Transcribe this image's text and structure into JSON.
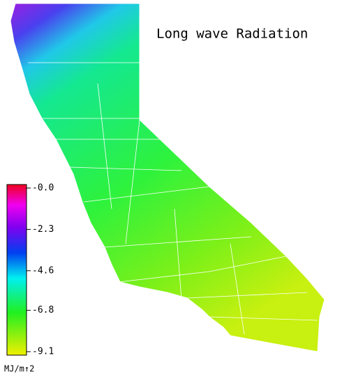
{
  "title": "Long wave Radiation",
  "colorbar": {
    "unit": "MJ/m↑2",
    "ylim": [
      -9.1,
      0
    ],
    "ticks": [
      {
        "value": 0,
        "label": "-0.0"
      },
      -2.3,
      -4.6,
      -6.8,
      -9.1
    ]
  }
}
